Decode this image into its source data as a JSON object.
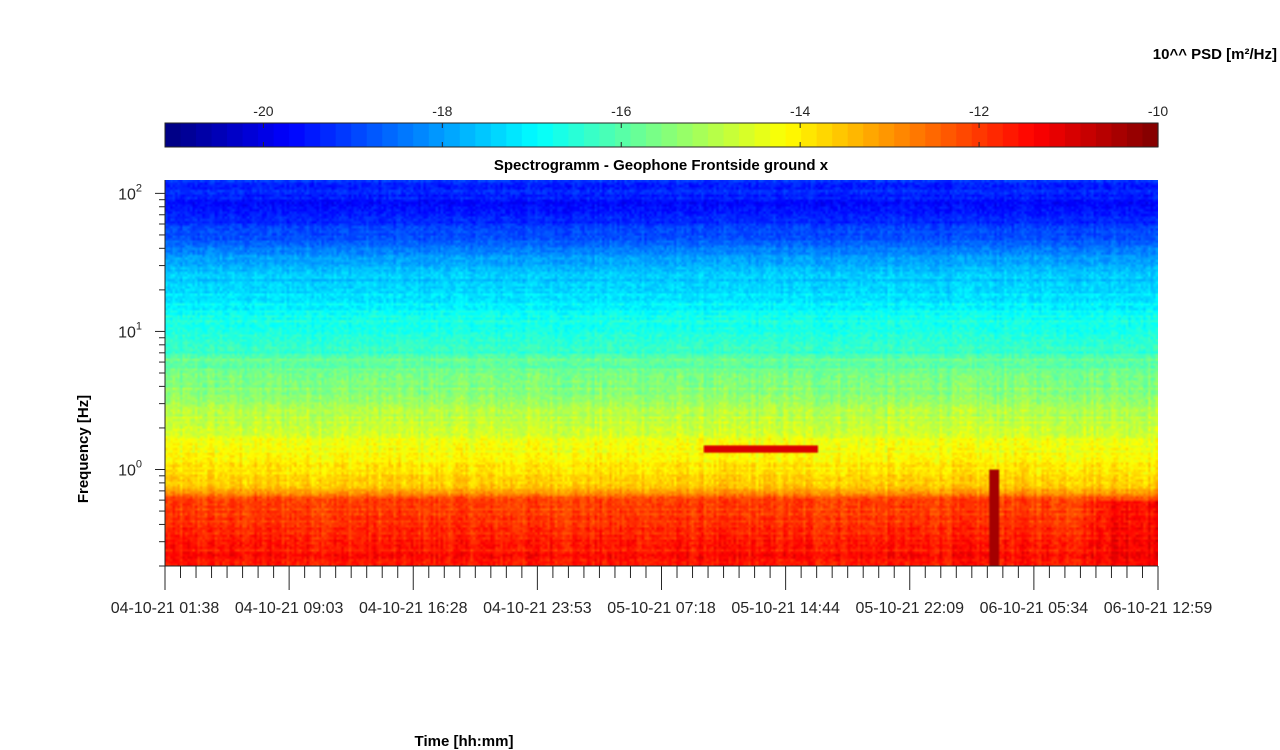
{
  "chart_data": {
    "type": "heatmap",
    "title": "Spectrogramm - Geophone Frontside ground x",
    "xlabel": "Time [hh:mm]",
    "ylabel": "Frequency [Hz]",
    "colorbar_label": "10^^ PSD [m²/Hz]",
    "colormap": "jet",
    "color_range": [
      -21.1,
      -10
    ],
    "colorbar_ticks": [
      {
        "value": -20,
        "label": "-20"
      },
      {
        "value": -18,
        "label": "-18"
      },
      {
        "value": -16,
        "label": "-16"
      },
      {
        "value": -14,
        "label": "-14"
      },
      {
        "value": -12,
        "label": "-12"
      },
      {
        "value": -10,
        "label": "-10"
      }
    ],
    "y_scale": "log",
    "ylim": [
      0.2,
      125
    ],
    "y_ticks": [
      {
        "value": 1,
        "base": "10",
        "exp": "0"
      },
      {
        "value": 10,
        "base": "10",
        "exp": "1"
      },
      {
        "value": 100,
        "base": "10",
        "exp": "2"
      }
    ],
    "x_range_hours": [
      0,
      64
    ],
    "x_ticks": [
      {
        "value": 0,
        "label": "04-10-21  01:38"
      },
      {
        "value": 8,
        "label": "04-10-21  09:03"
      },
      {
        "value": 16,
        "label": "04-10-21  16:28"
      },
      {
        "value": 24,
        "label": "04-10-21  23:53"
      },
      {
        "value": 32,
        "label": "05-10-21  07:18"
      },
      {
        "value": 40,
        "label": "05-10-21  14:44"
      },
      {
        "value": 48,
        "label": "05-10-21  22:09"
      },
      {
        "value": 56,
        "label": "06-10-21  05:34"
      },
      {
        "value": 64,
        "label": "06-10-21  12:59"
      }
    ],
    "psd_profile": [
      {
        "f": 0.2,
        "v": -11.5
      },
      {
        "f": 0.4,
        "v": -11.9
      },
      {
        "f": 0.62,
        "v": -12.2
      },
      {
        "f": 0.72,
        "v": -13.4
      },
      {
        "f": 1.0,
        "v": -13.9
      },
      {
        "f": 1.6,
        "v": -14.4
      },
      {
        "f": 2.5,
        "v": -14.9
      },
      {
        "f": 4.0,
        "v": -15.5
      },
      {
        "f": 5.8,
        "v": -15.9
      },
      {
        "f": 6.3,
        "v": -15.7
      },
      {
        "f": 7.0,
        "v": -16.4
      },
      {
        "f": 12,
        "v": -16.7
      },
      {
        "f": 18,
        "v": -17.2
      },
      {
        "f": 30,
        "v": -17.8
      },
      {
        "f": 50,
        "v": -18.9
      },
      {
        "f": 80,
        "v": -19.6
      },
      {
        "f": 125,
        "v": -19.2
      }
    ],
    "features": [
      {
        "kind": "narrowband",
        "t_start": 34.7,
        "t_end": 42.0,
        "f": 1.4,
        "v": -11.0
      },
      {
        "kind": "broadband",
        "t": 53.4,
        "f_low": 0.2,
        "f_high": 1.0,
        "v": -10.4
      },
      {
        "kind": "elevated-low-band",
        "t_start": 58.5,
        "t_end": 64,
        "f_low": 0.2,
        "f_high": 0.6,
        "v": -11.2
      }
    ]
  }
}
